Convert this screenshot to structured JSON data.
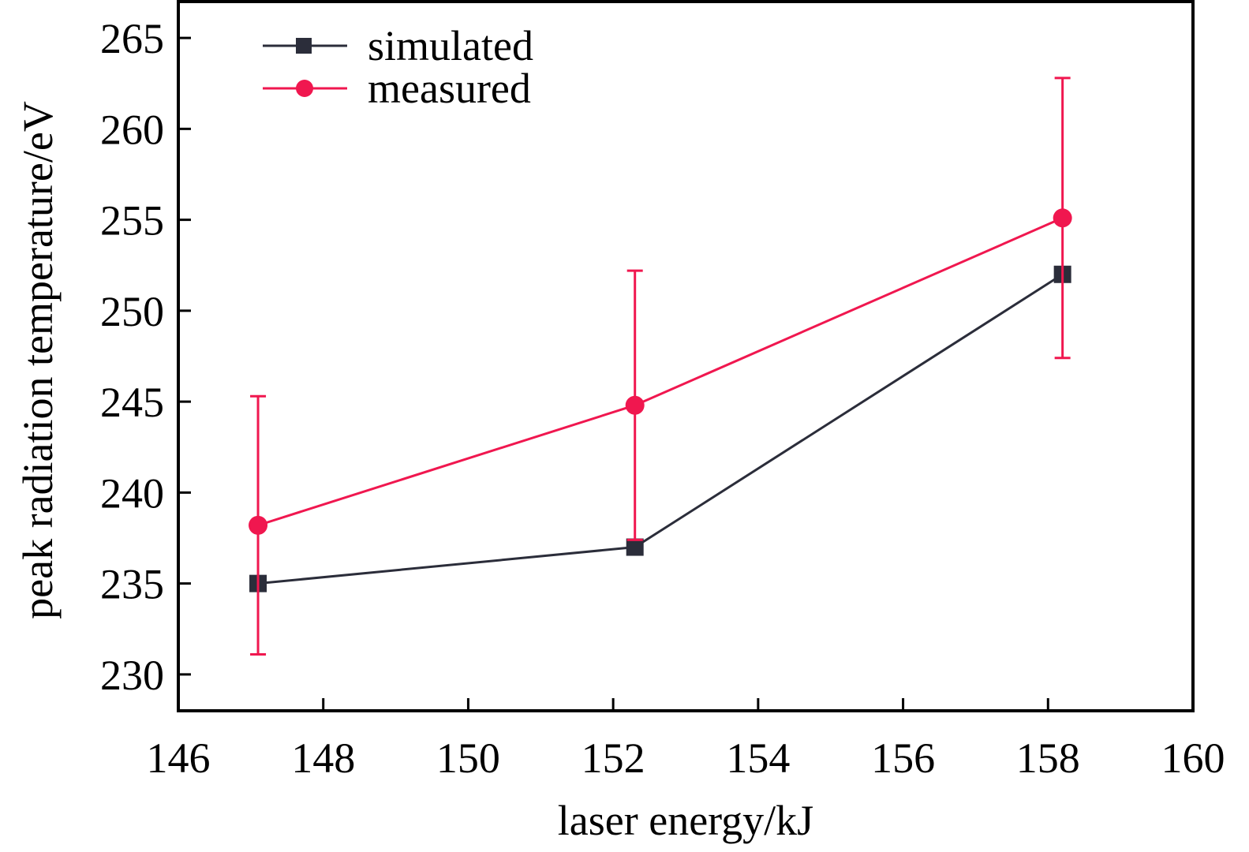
{
  "chart_data": {
    "type": "line",
    "title": "",
    "xlabel": "laser energy/kJ",
    "ylabel": "peak radiation temperature/eV",
    "xlim": [
      146,
      160
    ],
    "ylim": [
      228,
      267
    ],
    "xticks": [
      146,
      148,
      150,
      152,
      154,
      156,
      158,
      160
    ],
    "yticks": [
      230,
      235,
      240,
      245,
      250,
      255,
      260,
      265
    ],
    "grid": false,
    "legend_position": "top-left",
    "series": [
      {
        "name": "simulated",
        "marker": "square",
        "color": "#2b2d3a",
        "x": [
          147.1,
          152.3,
          158.2
        ],
        "y": [
          235.0,
          237.0,
          252.0
        ]
      },
      {
        "name": "measured",
        "marker": "circle",
        "color": "#f0174f",
        "x": [
          147.1,
          152.3,
          158.2
        ],
        "y": [
          238.2,
          244.8,
          255.1
        ],
        "error": [
          7.1,
          7.4,
          7.7
        ]
      }
    ]
  }
}
